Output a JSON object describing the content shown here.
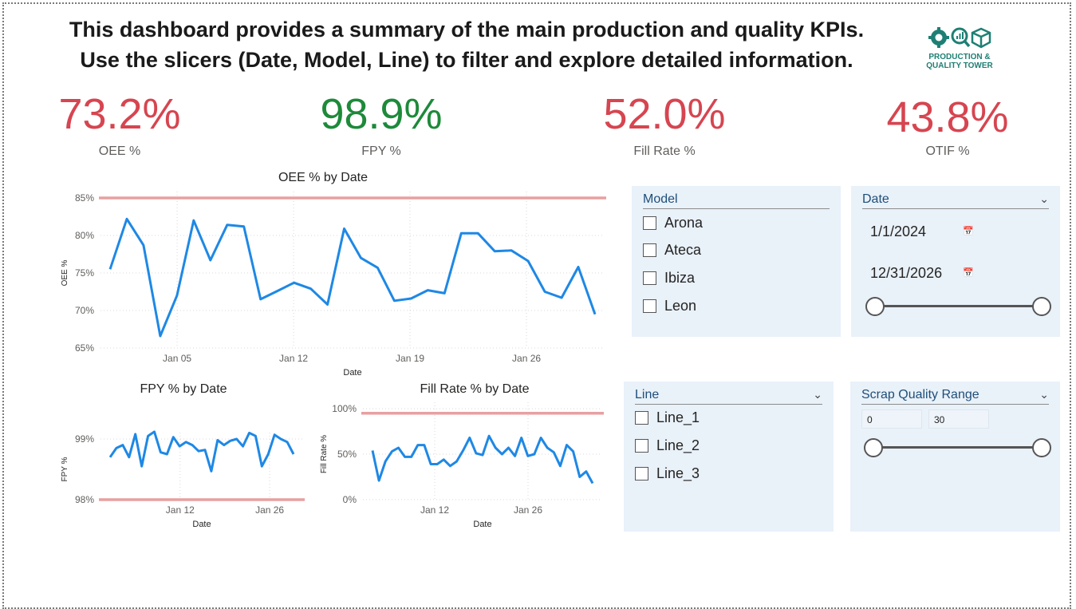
{
  "header": {
    "line1": "This dashboard provides a summary of the main production and quality KPIs.",
    "line2": "Use the slicers (Date, Model, Line) to filter and explore detailed information.",
    "logo_line1": "PRODUCTION &",
    "logo_line2": "QUALITY TOWER"
  },
  "kpis": [
    {
      "value": "73.2%",
      "label": "OEE %"
    },
    {
      "value": "98.9%",
      "label": "FPY %"
    },
    {
      "value": "52.0%",
      "label": "Fill Rate %"
    },
    {
      "value": "43.8%",
      "label": "OTIF %"
    }
  ],
  "slicers": {
    "model": {
      "title": "Model",
      "options": [
        "Arona",
        "Ateca",
        "Ibiza",
        "Leon"
      ]
    },
    "date": {
      "title": "Date",
      "start": "1/1/2024",
      "end": "12/31/2026"
    },
    "line": {
      "title": "Line",
      "options": [
        "Line_1",
        "Line_2",
        "Line_3"
      ]
    },
    "scrap": {
      "title": "Scrap Quality Range",
      "min": "0",
      "max": "30"
    }
  },
  "colors": {
    "bad": "#d64550",
    "good": "#1d8a3a",
    "series": "#1e88e5",
    "target": "#e8a0a0"
  },
  "chart_data": [
    {
      "type": "line",
      "title": "OEE % by Date",
      "xlabel": "Date",
      "ylabel": "OEE %",
      "yticks": [
        "85%",
        "80%",
        "75%",
        "70%",
        "65%"
      ],
      "xticks": [
        "Jan 05",
        "Jan 12",
        "Jan 19",
        "Jan 26"
      ],
      "ylim": [
        65,
        85
      ],
      "target": 85,
      "values": [
        75.5,
        82.2,
        78.7,
        66.6,
        72.0,
        82.0,
        76.7,
        81.4,
        81.2,
        71.5,
        72.6,
        73.7,
        72.9,
        70.8,
        80.9,
        77.0,
        75.7,
        71.3,
        71.6,
        72.7,
        72.3,
        80.3,
        80.3,
        77.9,
        78.0,
        76.6,
        72.5,
        71.7,
        75.8,
        69.5
      ]
    },
    {
      "type": "line",
      "title": "FPY % by Date",
      "xlabel": "Date",
      "ylabel": "FPY %",
      "yticks": [
        "99%",
        "98%"
      ],
      "xticks": [
        "Jan 12",
        "Jan 26"
      ],
      "ylim": [
        98,
        99
      ],
      "target": 98,
      "values": [
        98.7,
        98.85,
        98.9,
        98.7,
        99.08,
        98.55,
        99.05,
        99.12,
        98.78,
        98.75,
        99.03,
        98.88,
        98.95,
        98.9,
        98.8,
        98.82,
        98.47,
        98.98,
        98.9,
        98.97,
        99.0,
        98.88,
        99.1,
        99.05,
        98.55,
        98.75,
        99.07,
        99.0,
        98.95,
        98.75
      ]
    },
    {
      "type": "line",
      "title": "Fill Rate % by Date",
      "xlabel": "Date",
      "ylabel": "Fill Rate %",
      "yticks": [
        "100%",
        "50%",
        "0%"
      ],
      "xticks": [
        "Jan 12",
        "Jan 26"
      ],
      "ylim": [
        0,
        100
      ],
      "target": 95,
      "values": [
        54,
        21,
        42,
        53,
        57,
        47,
        47,
        60,
        60,
        39,
        39,
        44,
        37,
        42,
        54,
        68,
        51,
        49,
        70,
        57,
        50,
        57,
        48,
        68,
        48,
        50,
        68,
        57,
        52,
        37,
        60,
        53,
        25,
        31,
        18
      ]
    }
  ]
}
